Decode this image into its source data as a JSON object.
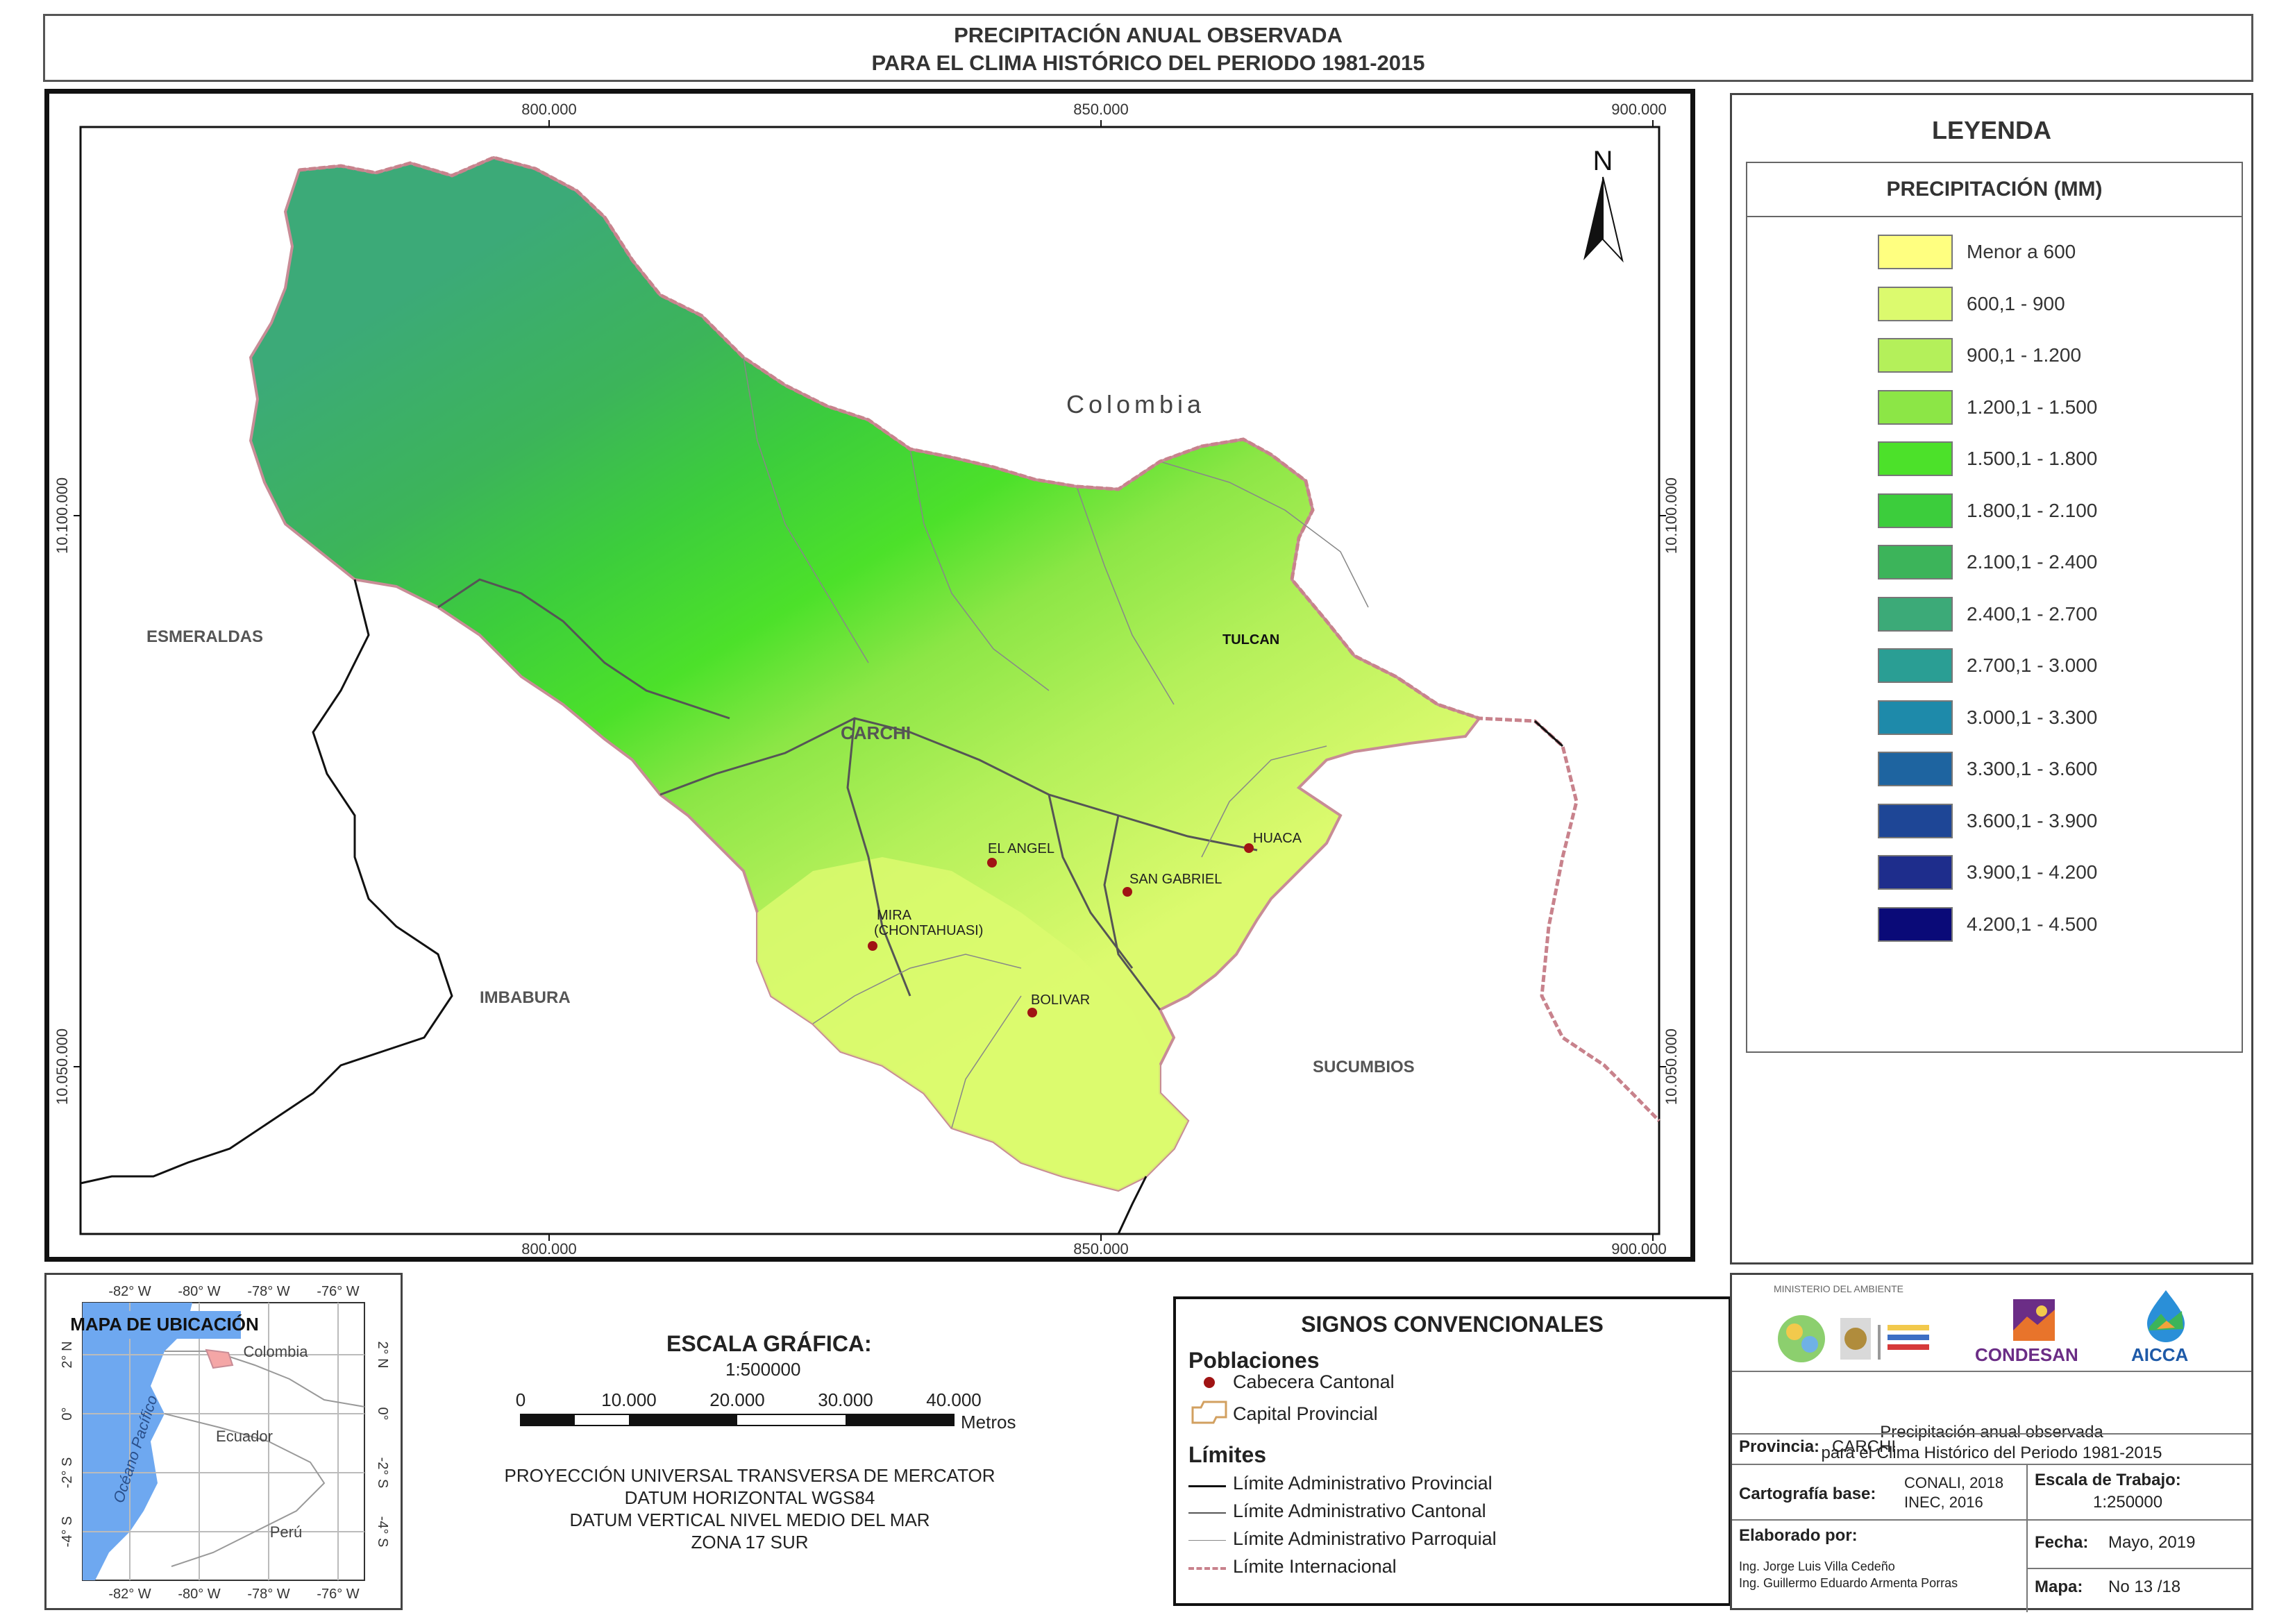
{
  "title": {
    "line1": "PRECIPITACIÓN ANUAL OBSERVADA",
    "line2": "PARA EL CLIMA HISTÓRICO DEL PERIODO 1981-2015"
  },
  "map": {
    "grid_x_labels": [
      "800.000",
      "850.000",
      "900.000"
    ],
    "grid_y_labels": [
      "10.100.000",
      "10.050.000"
    ],
    "north": "N",
    "country_label": "Colombia",
    "province_label": "CARCHI",
    "neighbors": [
      "ESMERALDAS",
      "IMBABURA",
      "SUCUMBIOS"
    ],
    "capital": "TULCAN",
    "towns": [
      "HUACA",
      "EL ANGEL",
      "SAN GABRIEL",
      "MIRA",
      "(CHONTAHUASI)",
      "BOLIVAR"
    ]
  },
  "legend": {
    "title": "LEYENDA",
    "subtitle": "PRECIPITACIÓN (MM)",
    "items": [
      {
        "label": "Menor a 600",
        "color": "#ffff80"
      },
      {
        "label": "600,1 - 900",
        "color": "#dcfa6e"
      },
      {
        "label": "900,1 - 1.200",
        "color": "#b4f05a"
      },
      {
        "label": "1.200,1 - 1.500",
        "color": "#8ce646"
      },
      {
        "label": "1.500,1 - 1.800",
        "color": "#4ce12a"
      },
      {
        "label": "1.800,1 - 2.100",
        "color": "#3ccd3c"
      },
      {
        "label": "2.100,1 - 2.400",
        "color": "#3cb45a"
      },
      {
        "label": "2.400,1 - 2.700",
        "color": "#3caa78"
      },
      {
        "label": "2.700,1 - 3.000",
        "color": "#2a9e94"
      },
      {
        "label": "3.000,1 - 3.300",
        "color": "#1e8aaa"
      },
      {
        "label": "3.300,1 - 3.600",
        "color": "#1e64a0"
      },
      {
        "label": "3.600,1 - 3.900",
        "color": "#1e4696"
      },
      {
        "label": "3.900,1 - 4.200",
        "color": "#1e2d8c"
      },
      {
        "label": "4.200,1 - 4.500",
        "color": "#0a0a78"
      }
    ]
  },
  "location_map": {
    "title": "MAPA DE UBICACIÓN",
    "lon_labels": [
      "-82° W",
      "-80° W",
      "-78° W",
      "-76° W"
    ],
    "lat_labels": [
      "2° N",
      "0°",
      "-2° S",
      "-4° S"
    ],
    "ocean": "Océano Pacífico",
    "countries": [
      "Colombia",
      "Ecuador",
      "Perú"
    ]
  },
  "scale": {
    "title": "ESCALA GRÁFICA:",
    "ratio": "1:500000",
    "ticks": [
      "0",
      "10.000",
      "20.000",
      "30.000",
      "40.000"
    ],
    "unit": "Metros",
    "projection": [
      "PROYECCIÓN UNIVERSAL TRANSVERSA DE MERCATOR",
      "DATUM HORIZONTAL WGS84",
      "DATUM VERTICAL NIVEL MEDIO DEL MAR",
      "ZONA 17 SUR"
    ]
  },
  "signs": {
    "title": "SIGNOS CONVENCIONALES",
    "populations_title": "Poblaciones",
    "populations": [
      "Cabecera Cantonal",
      "Capital Provincial"
    ],
    "limits_title": "Límites",
    "limits": [
      "Límite Administrativo Provincial",
      "Límite Administrativo Cantonal",
      "Límite Administrativo Parroquial",
      "Límite Internacional"
    ]
  },
  "info": {
    "logos": {
      "ministry": "MINISTERIO DEL AMBIENTE",
      "condesan": "CONDESAN",
      "aicca": "AICCA"
    },
    "description_line1": "Precipitación anual observada",
    "description_line2": "para el Clima Histórico del Periodo 1981-2015",
    "province_label": "Provincia:",
    "province_value": "CARCHI",
    "base_label": "Cartografía base:",
    "base_value1": "CONALI, 2018",
    "base_value2": "INEC, 2016",
    "scale_label": "Escala de Trabajo:",
    "scale_value": "1:250000",
    "author_label": "Elaborado por:",
    "author1": "Ing. Jorge Luis Villa Cedeño",
    "author2": "Ing. Guillermo Eduardo Armenta Porras",
    "date_label": "Fecha:",
    "date_value": "Mayo, 2019",
    "map_label": "Mapa:",
    "map_value": "No 13 /18"
  }
}
